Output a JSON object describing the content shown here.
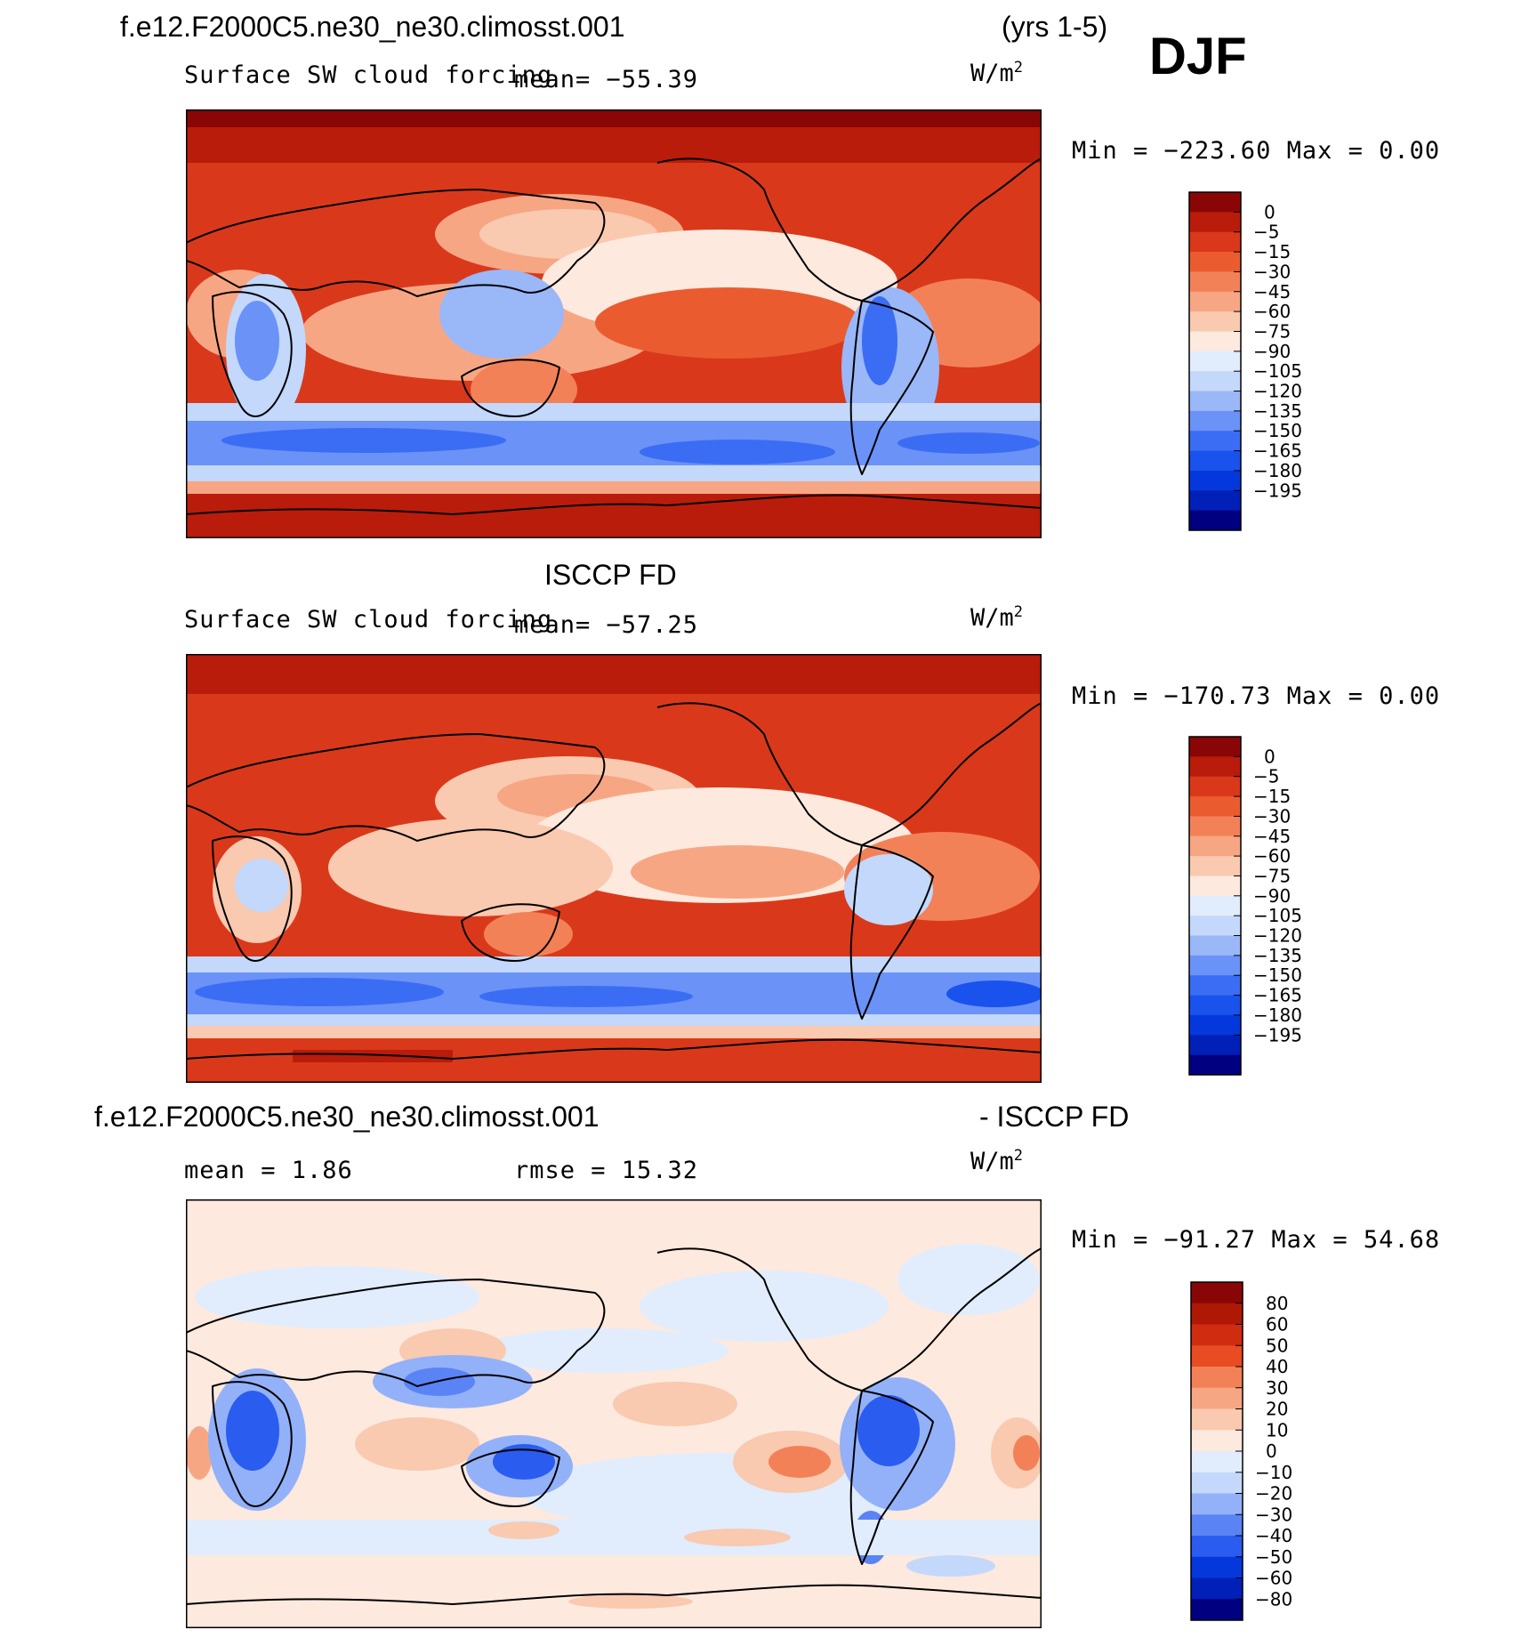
{
  "header": {
    "case_title": "f.e12.F2000C5.ne30_ne30.climosst.001",
    "years": "(yrs 1-5)",
    "season": "DJF"
  },
  "colors": {
    "abs_palette": [
      "#000080",
      "#0020b8",
      "#0538dc",
      "#1a52ee",
      "#3b6df4",
      "#6b92f7",
      "#9ab7f8",
      "#c3d8fb",
      "#e1edfd",
      "#fde9de",
      "#f9c9b0",
      "#f7a684",
      "#f38158",
      "#ea5c30",
      "#d9391a",
      "#b91c0a",
      "#8a0606"
    ],
    "diff_palette": [
      "#000080",
      "#0020b8",
      "#0538dc",
      "#2b5cf0",
      "#5a84f5",
      "#93b1f8",
      "#c3d8fb",
      "#e1edfd",
      "#fde9de",
      "#f9c9b0",
      "#f7a684",
      "#f38158",
      "#e94b22",
      "#d02c10",
      "#b01806",
      "#8a0606"
    ],
    "land_outline": "#000000"
  },
  "panels": [
    {
      "id": "model",
      "variable": "Surface SW cloud forcing",
      "mean_text": "mean= −55.39",
      "units": "W/m",
      "units_exp": "2",
      "minmax": "Min = −223.60 Max =    0.00"
    },
    {
      "id": "obs",
      "title": "ISCCP FD",
      "variable": "Surface SW cloud forcing",
      "mean_text": "mean= −57.25",
      "units": "W/m",
      "units_exp": "2",
      "minmax": "Min = −170.73 Max =    0.00"
    },
    {
      "id": "diff",
      "title_left": "f.e12.F2000C5.ne30_ne30.climosst.001",
      "title_right": "- ISCCP FD",
      "mean_text": "mean =    1.86",
      "rmse_text": "rmse =   15.32",
      "units": "W/m",
      "units_exp": "2",
      "minmax": "Min = −91.27 Max =  54.68"
    }
  ],
  "chart_data": [
    {
      "type": "heatmap",
      "title": "f.e12.F2000C5.ne30_ne30.climosst.001 (yrs 1-5) DJF",
      "subtitle": "Surface SW cloud forcing",
      "units": "W/m2",
      "mean": -55.39,
      "min": -223.6,
      "max": 0.0,
      "colorbar_levels": [
        "0",
        "−5",
        "−15",
        "−30",
        "−45",
        "−60",
        "−75",
        "−90",
        "−105",
        "−120",
        "−135",
        "−150",
        "−165",
        "−180",
        "−195"
      ]
    },
    {
      "type": "heatmap",
      "title": "ISCCP FD",
      "subtitle": "Surface SW cloud forcing",
      "units": "W/m2",
      "mean": -57.25,
      "min": -170.73,
      "max": 0.0,
      "colorbar_levels": [
        "0",
        "−5",
        "−15",
        "−30",
        "−45",
        "−60",
        "−75",
        "−90",
        "−105",
        "−120",
        "−135",
        "−150",
        "−165",
        "−180",
        "−195"
      ]
    },
    {
      "type": "heatmap",
      "title": "f.e12.F2000C5.ne30_ne30.climosst.001 - ISCCP FD",
      "units": "W/m2",
      "mean": 1.86,
      "rmse": 15.32,
      "min": -91.27,
      "max": 54.68,
      "colorbar_levels": [
        "80",
        "60",
        "50",
        "40",
        "30",
        "20",
        "10",
        "0",
        "−10",
        "−20",
        "−30",
        "−40",
        "−50",
        "−60",
        "−80"
      ]
    }
  ]
}
